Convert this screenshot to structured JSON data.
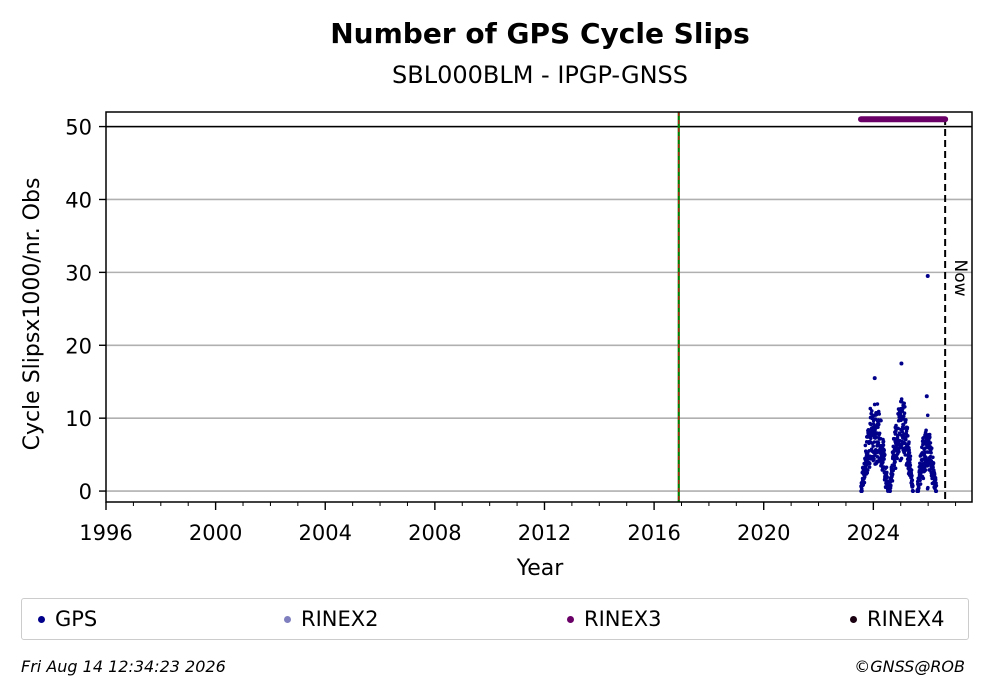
{
  "chart_data": {
    "type": "scatter",
    "title": "Number of GPS Cycle Slips",
    "subtitle": "SBL000BLM - IPGP-GNSS",
    "xlabel": "Year",
    "ylabel": "Cycle Slipsx1000/nr. Obs",
    "xlim": [
      1996,
      2027.6
    ],
    "ylim": [
      -1.5,
      52
    ],
    "x_ticks": [
      "1996",
      "2000",
      "2004",
      "2008",
      "2012",
      "2016",
      "2020",
      "2024"
    ],
    "y_ticks": [
      "0",
      "10",
      "20",
      "30",
      "40",
      "50"
    ],
    "grid": "horizontal",
    "hline": 50,
    "event_line_year": 2016.9,
    "now_line_year": 2026.62,
    "now_label": "Now",
    "rinex3_bar": {
      "start": 2023.55,
      "end": 2026.62,
      "value": 51
    },
    "gps_bursts": [
      {
        "start": 2023.55,
        "end": 2024.55,
        "peak": 12,
        "outlier": 15.5
      },
      {
        "start": 2024.6,
        "end": 2025.45,
        "peak": 13,
        "outlier": 17.5
      },
      {
        "start": 2025.6,
        "end": 2026.3,
        "peak": 8,
        "outlier": 13
      },
      {
        "start": 2025.98,
        "end": 2025.99,
        "peak": 29.5,
        "outlier": 29.5
      }
    ],
    "series": [
      {
        "name": "GPS",
        "color": "#00008b"
      },
      {
        "name": "RINEX2",
        "color": "#7f7fbf"
      },
      {
        "name": "RINEX3",
        "color": "#6a0067"
      },
      {
        "name": "RINEX4",
        "color": "#1a0010"
      }
    ]
  },
  "footer": {
    "timestamp": "Fri Aug 14 12:34:23 2026",
    "credit": "©GNSS@ROB"
  }
}
